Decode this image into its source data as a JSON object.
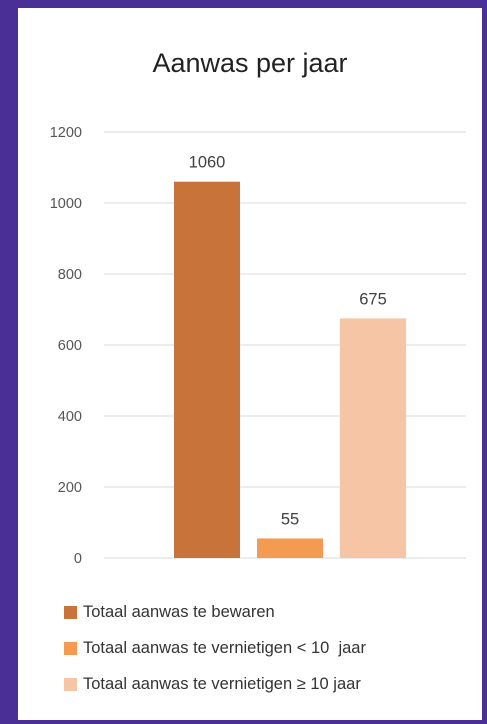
{
  "chart_data": {
    "type": "bar",
    "title": "Aanwas per jaar",
    "xlabel": "",
    "ylabel": "",
    "ylim": [
      0,
      1200
    ],
    "yticks": [
      0,
      200,
      400,
      600,
      800,
      1000,
      1200
    ],
    "grid": true,
    "legend_position": "bottom",
    "series": [
      {
        "name": "Totaal aanwas te bewaren",
        "value": 1060,
        "label": "1060",
        "color": "#c8733a"
      },
      {
        "name": "Totaal aanwas te vernietigen < 10  jaar",
        "value": 55,
        "label": "55",
        "color": "#f29b51"
      },
      {
        "name": "Totaal aanwas te vernietigen ≥ 10 jaar",
        "value": 675,
        "label": "675",
        "color": "#f6c5a6"
      }
    ]
  }
}
